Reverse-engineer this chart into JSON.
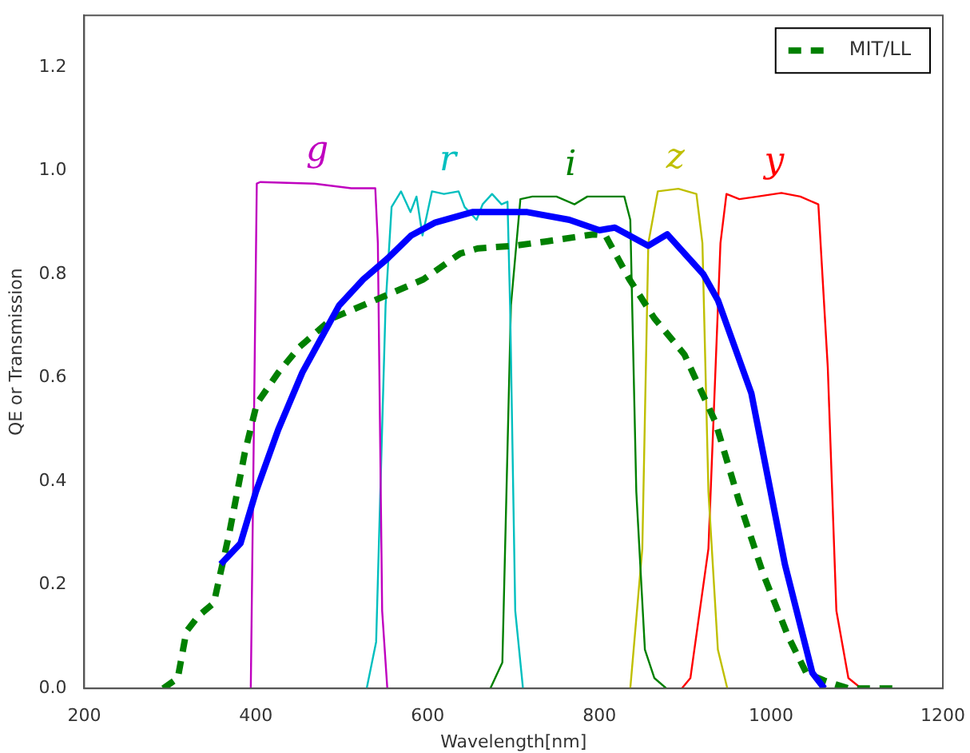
{
  "chart_data": {
    "type": "line",
    "xlabel": "Wavelength[nm]",
    "ylabel": "QE or Transmission",
    "xlim": [
      200,
      1200
    ],
    "xticks": [
      200,
      400,
      600,
      800,
      1000,
      1200
    ],
    "ylim": [
      0,
      1.3
    ],
    "yticks": [
      {
        "value": 0,
        "label": "0.0"
      },
      0.2,
      0.4,
      0.6,
      0.8,
      {
        "value": 1,
        "label": "1.0"
      },
      1.2
    ],
    "grid": false,
    "legend": "top right",
    "series": [
      {
        "color": "#0000ff",
        "line_style": "solid",
        "x": [
          359,
          382,
          400,
          426,
          454,
          497,
          525,
          553,
          581,
          609,
          652,
          716,
          765,
          800,
          818,
          857,
          879,
          921,
          938,
          977,
          1016,
          1048,
          1062
        ],
        "values": [
          0.24,
          0.28,
          0.38,
          0.5,
          0.61,
          0.74,
          0.79,
          0.83,
          0.875,
          0.9,
          0.92,
          0.92,
          0.905,
          0.885,
          0.89,
          0.855,
          0.877,
          0.8,
          0.75,
          0.57,
          0.24,
          0.03,
          0.0
        ]
      },
      {
        "name": "MIT/LL",
        "color": "#008000",
        "line_style": "dashed",
        "x": [
          292,
          309,
          319,
          333,
          351,
          369,
          387,
          401,
          426,
          451,
          489,
          539,
          595,
          638,
          659,
          701,
          737,
          793,
          807,
          835,
          864,
          899,
          935,
          963,
          991,
          1020,
          1041,
          1062,
          1090,
          1147
        ],
        "values": [
          0,
          0.02,
          0.11,
          0.14,
          0.165,
          0.3,
          0.455,
          0.55,
          0.61,
          0.66,
          0.715,
          0.75,
          0.79,
          0.84,
          0.85,
          0.855,
          0.863,
          0.877,
          0.875,
          0.79,
          0.715,
          0.645,
          0.515,
          0.36,
          0.22,
          0.1,
          0.03,
          0.015,
          0,
          0
        ]
      },
      {
        "name": "g",
        "color": "#bf00bf",
        "x": [
          394,
          401,
          405,
          468,
          511,
          539,
          542,
          547,
          553
        ],
        "values": [
          0,
          0.975,
          0.978,
          0.975,
          0.966,
          0.966,
          0.86,
          0.15,
          0
        ]
      },
      {
        "name": "r",
        "color": "#00bfbf",
        "x": [
          529,
          540,
          551,
          558,
          569,
          580,
          587,
          594,
          605,
          619,
          636,
          643,
          657,
          664,
          675,
          686,
          693,
          696,
          702,
          711
        ],
        "values": [
          0,
          0.09,
          0.74,
          0.93,
          0.96,
          0.92,
          0.95,
          0.875,
          0.96,
          0.955,
          0.96,
          0.93,
          0.905,
          0.935,
          0.955,
          0.935,
          0.94,
          0.74,
          0.15,
          0
        ]
      },
      {
        "name": "i",
        "color": "#008000",
        "x": [
          673,
          687,
          697,
          708,
          722,
          750,
          771,
          786,
          807,
          829,
          836,
          843,
          853,
          864,
          878
        ],
        "values": [
          0,
          0.05,
          0.74,
          0.945,
          0.95,
          0.95,
          0.935,
          0.95,
          0.95,
          0.95,
          0.905,
          0.38,
          0.075,
          0.02,
          0
        ]
      },
      {
        "name": "z",
        "color": "#bfbf00",
        "x": [
          836,
          850,
          857,
          868,
          892,
          913,
          920,
          927,
          938,
          949
        ],
        "values": [
          0,
          0.27,
          0.86,
          0.96,
          0.965,
          0.955,
          0.86,
          0.38,
          0.075,
          0
        ]
      },
      {
        "name": "y",
        "color": "#ff0000",
        "x": [
          896,
          906,
          927,
          941,
          948,
          963,
          984,
          1012,
          1034,
          1055,
          1066,
          1076,
          1090,
          1105
        ],
        "values": [
          0,
          0.02,
          0.27,
          0.86,
          0.955,
          0.945,
          0.95,
          0.957,
          0.95,
          0.935,
          0.62,
          0.15,
          0.02,
          0
        ]
      }
    ]
  }
}
